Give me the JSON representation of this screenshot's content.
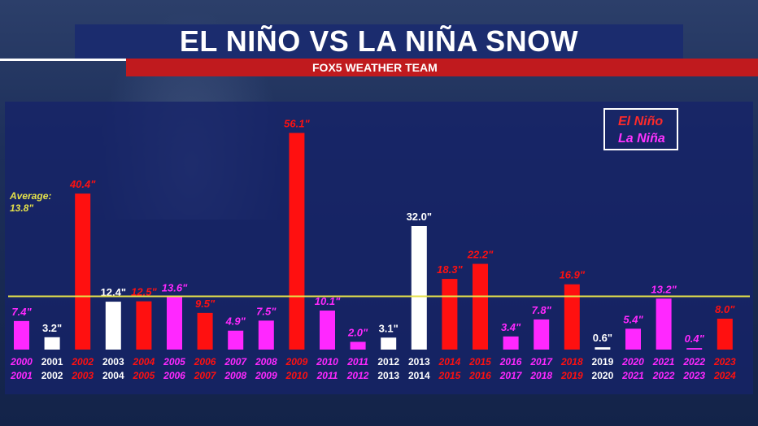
{
  "title": "EL NIÑO VS LA NIÑA SNOW",
  "subtitle": "FOX5 WEATHER TEAM",
  "legend": {
    "el_nino": "El Niño",
    "la_nina": "La Niña"
  },
  "average": {
    "label": "Average:",
    "value_text": "13.8\""
  },
  "colors": {
    "el_nino": "#ff1010",
    "la_nina": "#ff28ff",
    "neutral": "#ffffff",
    "average_line": "#e6e24a",
    "banner": "#1b2c6e",
    "subbanner": "#c01a1e"
  },
  "chart_data": {
    "type": "bar",
    "ylim": [
      0,
      60
    ],
    "average": 13.8,
    "categories": [
      {
        "top": "2000",
        "bottom": "2001",
        "value": 7.4,
        "label": "7.4\"",
        "phase": "la_nina"
      },
      {
        "top": "2001",
        "bottom": "2002",
        "value": 3.2,
        "label": "3.2\"",
        "phase": "neutral"
      },
      {
        "top": "2002",
        "bottom": "2003",
        "value": 40.4,
        "label": "40.4\"",
        "phase": "el_nino"
      },
      {
        "top": "2003",
        "bottom": "2004",
        "value": 12.4,
        "label": "12.4\"",
        "phase": "neutral"
      },
      {
        "top": "2004",
        "bottom": "2005",
        "value": 12.5,
        "label": "12.5\"",
        "phase": "el_nino"
      },
      {
        "top": "2005",
        "bottom": "2006",
        "value": 13.6,
        "label": "13.6\"",
        "phase": "la_nina"
      },
      {
        "top": "2006",
        "bottom": "2007",
        "value": 9.5,
        "label": "9.5\"",
        "phase": "el_nino"
      },
      {
        "top": "2007",
        "bottom": "2008",
        "value": 4.9,
        "label": "4.9\"",
        "phase": "la_nina"
      },
      {
        "top": "2008",
        "bottom": "2009",
        "value": 7.5,
        "label": "7.5\"",
        "phase": "la_nina"
      },
      {
        "top": "2009",
        "bottom": "2010",
        "value": 56.1,
        "label": "56.1\"",
        "phase": "el_nino"
      },
      {
        "top": "2010",
        "bottom": "2011",
        "value": 10.1,
        "label": "10.1\"",
        "phase": "la_nina"
      },
      {
        "top": "2011",
        "bottom": "2012",
        "value": 2.0,
        "label": "2.0\"",
        "phase": "la_nina"
      },
      {
        "top": "2012",
        "bottom": "2013",
        "value": 3.1,
        "label": "3.1\"",
        "phase": "neutral"
      },
      {
        "top": "2013",
        "bottom": "2014",
        "value": 32.0,
        "label": "32.0\"",
        "phase": "neutral"
      },
      {
        "top": "2014",
        "bottom": "2015",
        "value": 18.3,
        "label": "18.3\"",
        "phase": "el_nino"
      },
      {
        "top": "2015",
        "bottom": "2016",
        "value": 22.2,
        "label": "22.2\"",
        "phase": "el_nino"
      },
      {
        "top": "2016",
        "bottom": "2017",
        "value": 3.4,
        "label": "3.4\"",
        "phase": "la_nina"
      },
      {
        "top": "2017",
        "bottom": "2018",
        "value": 7.8,
        "label": "7.8\"",
        "phase": "la_nina"
      },
      {
        "top": "2018",
        "bottom": "2019",
        "value": 16.9,
        "label": "16.9\"",
        "phase": "el_nino"
      },
      {
        "top": "2019",
        "bottom": "2020",
        "value": 0.6,
        "label": "0.6\"",
        "phase": "neutral"
      },
      {
        "top": "2020",
        "bottom": "2021",
        "value": 5.4,
        "label": "5.4\"",
        "phase": "la_nina"
      },
      {
        "top": "2021",
        "bottom": "2022",
        "value": 13.2,
        "label": "13.2\"",
        "phase": "la_nina"
      },
      {
        "top": "2022",
        "bottom": "2023",
        "value": 0.4,
        "label": "0.4\"",
        "phase": "la_nina"
      },
      {
        "top": "2023",
        "bottom": "2024",
        "value": 8.0,
        "label": "8.0\"",
        "phase": "el_nino"
      }
    ]
  }
}
